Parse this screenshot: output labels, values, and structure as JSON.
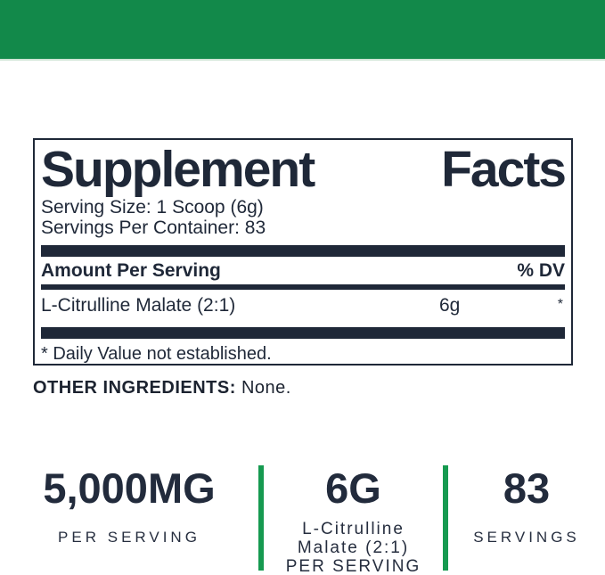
{
  "colors": {
    "band_green": "#12894a",
    "divider_green": "#169a50",
    "navy": "#1f2838"
  },
  "panel": {
    "title_word1": "Supplement",
    "title_word2": "Facts",
    "serving_size": "Serving Size: 1 Scoop (6g)",
    "servings_per_container": "Servings Per Container: 83",
    "amount_header": "Amount Per Serving",
    "dv_header": "% DV",
    "rows": [
      {
        "name": "L-Citrulline Malate (2:1)",
        "amount": "6g",
        "dv": "*"
      }
    ],
    "footnote": "* Daily Value not established."
  },
  "other_ingredients": {
    "label": "OTHER INGREDIENTS:",
    "value": " None."
  },
  "stats": [
    {
      "value": "5,000MG",
      "lines": [
        "PER SERVING"
      ]
    },
    {
      "value": "6G",
      "lines": [
        "L-Citrulline",
        "Malate (2:1)",
        "PER SERVING"
      ]
    },
    {
      "value": "83",
      "lines": [
        "SERVINGS"
      ]
    }
  ]
}
